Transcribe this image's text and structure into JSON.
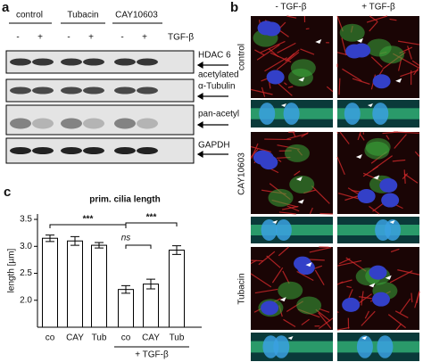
{
  "panel_a": {
    "letter": "a",
    "groups": [
      "control",
      "Tubacin",
      "CAY10603"
    ],
    "treatment_signs": [
      "-",
      "+",
      "-",
      "+",
      "-",
      "+"
    ],
    "treatment_label": "TGF-β",
    "blot_labels": [
      "HDAC 6",
      "acetylated",
      "α-Tubulin",
      "pan-acetyl",
      "GAPDH"
    ]
  },
  "panel_b": {
    "letter": "b",
    "columns": [
      "- TGF-β",
      "+ TGF-β"
    ],
    "rows": [
      "control",
      "CAY10603",
      "Tubacin"
    ]
  },
  "panel_c": {
    "letter": "c"
  },
  "chart_data": {
    "type": "bar",
    "title": "prim. cilia length",
    "y_label": "length [µm]",
    "categories": [
      "co",
      "CAY",
      "Tub",
      "co",
      "CAY",
      "Tub"
    ],
    "group_label": "+ TGF-β",
    "values": [
      3.15,
      3.1,
      3.02,
      2.2,
      2.3,
      2.93
    ],
    "errors": [
      0.06,
      0.08,
      0.05,
      0.07,
      0.09,
      0.08
    ],
    "color": "#ffffff",
    "ylim": [
      1.5,
      3.6
    ],
    "yticks": [
      {
        "value": 2,
        "label": "2.0"
      },
      {
        "value": 2.5,
        "label": "2.5"
      },
      {
        "value": 3,
        "label": "3.0"
      },
      {
        "value": 3.5,
        "label": "3.5"
      }
    ],
    "annotations": [
      "***",
      "ns",
      "***"
    ]
  }
}
